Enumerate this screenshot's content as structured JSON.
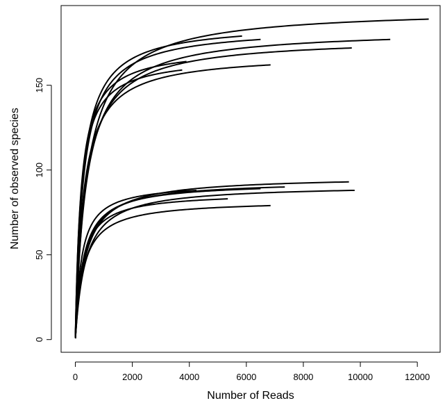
{
  "chart_data": {
    "type": "line",
    "title": "",
    "xlabel": "Number of Reads",
    "ylabel": "Number of observed species",
    "xlim": [
      -500,
      12800
    ],
    "ylim": [
      -7.5,
      197
    ],
    "x_ticks": [
      0,
      2000,
      4000,
      6000,
      8000,
      10000,
      12000
    ],
    "y_ticks": [
      0,
      50,
      100,
      150
    ],
    "grid": false,
    "legend": "none",
    "line_color": "#000000",
    "series": [
      {
        "max_reads": 12400,
        "max_species": 189
      },
      {
        "max_reads": 11050,
        "max_species": 177
      },
      {
        "max_reads": 9700,
        "max_species": 172
      },
      {
        "max_reads": 5850,
        "max_species": 179
      },
      {
        "max_reads": 6500,
        "max_species": 177
      },
      {
        "max_reads": 6850,
        "max_species": 162
      },
      {
        "max_reads": 3900,
        "max_species": 164
      },
      {
        "max_reads": 3750,
        "max_species": 159
      },
      {
        "max_reads": 9600,
        "max_species": 93
      },
      {
        "max_reads": 9800,
        "max_species": 88
      },
      {
        "max_reads": 7350,
        "max_species": 90
      },
      {
        "max_reads": 6500,
        "max_species": 89
      },
      {
        "max_reads": 4250,
        "max_species": 88
      },
      {
        "max_reads": 5350,
        "max_species": 83
      },
      {
        "max_reads": 6850,
        "max_species": 79
      }
    ]
  }
}
